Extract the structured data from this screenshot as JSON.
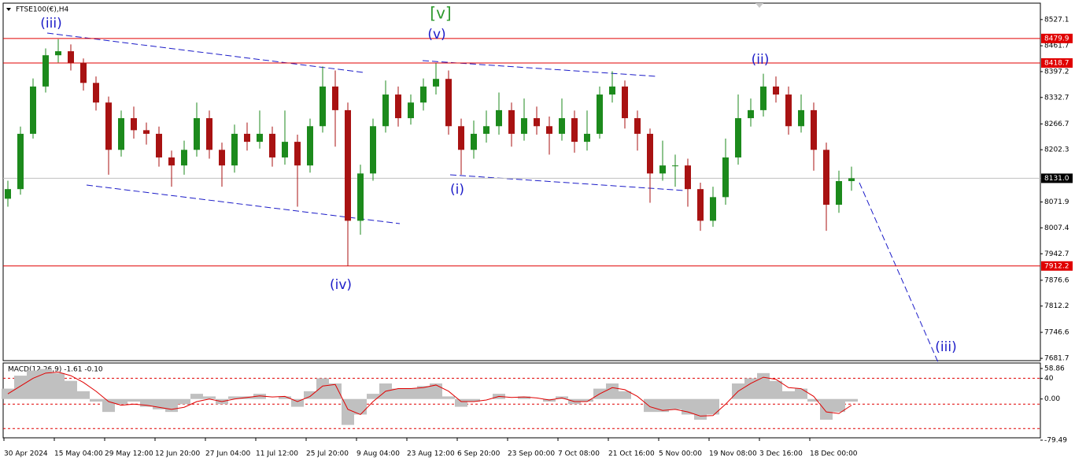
{
  "chart_data": [
    {
      "type": "candlestick",
      "title": "FTSE100(€),H4",
      "categories": [
        "30 Apr 2024",
        null,
        null,
        null,
        "15 May 04:00",
        null,
        null,
        null,
        "29 May 12:00",
        null,
        null,
        null,
        "12 Jun 20:00",
        null,
        null,
        null,
        "27 Jun 04:00",
        null,
        null,
        null,
        "11 Jul 12:00",
        null,
        null,
        null,
        "25 Jul 20:00",
        null,
        null,
        null,
        "9 Aug 04:00",
        null,
        null,
        null,
        "23 Aug 12:00",
        null,
        null,
        null,
        "6 Sep 20:00",
        null,
        null,
        null,
        "23 Sep 00:00",
        null,
        null,
        null,
        "7 Oct 08:00",
        null,
        null,
        null,
        "21 Oct 16:00",
        null,
        null,
        null,
        "5 Nov 00:00",
        null,
        null,
        null,
        "19 Nov 08:00",
        null,
        null,
        null,
        "3 Dec 16:00",
        null,
        null,
        null,
        "18 Dec 00:00",
        null,
        null,
        null
      ],
      "open": [
        8080,
        8104,
        8242,
        8360,
        8438,
        8448,
        8419,
        8369,
        8320,
        8202,
        8281,
        8251,
        8242,
        8183,
        8163,
        8202,
        8281,
        8202,
        8163,
        8242,
        8222,
        8242,
        8183,
        8222,
        8163,
        8261,
        8360,
        8301,
        8025,
        8143,
        8261,
        8340,
        8281,
        8320,
        8360,
        8379,
        8261,
        8202,
        8242,
        8261,
        8301,
        8242,
        8281,
        8261,
        8242,
        8281,
        8222,
        8242,
        8340,
        8360,
        8281,
        8242,
        8143,
        8163,
        8163,
        8104,
        8025,
        8084,
        8183,
        8281,
        8301,
        8360,
        8340,
        8261,
        8301,
        8202,
        8065,
        8124
      ],
      "high": [
        8125,
        8260,
        8380,
        8455,
        8478,
        8465,
        8430,
        8385,
        8335,
        8300,
        8310,
        8270,
        8260,
        8200,
        8225,
        8320,
        8300,
        8220,
        8265,
        8270,
        8300,
        8260,
        8300,
        8240,
        8280,
        8410,
        8400,
        8320,
        8165,
        8280,
        8375,
        8360,
        8340,
        8380,
        8418,
        8400,
        8280,
        8275,
        8300,
        8345,
        8320,
        8330,
        8310,
        8285,
        8330,
        8300,
        8300,
        8360,
        8398,
        8375,
        8300,
        8255,
        8225,
        8190,
        8180,
        8120,
        8110,
        8230,
        8340,
        8330,
        8392,
        8385,
        8360,
        8340,
        8320,
        8220,
        8150,
        8160
      ],
      "low": [
        8060,
        8090,
        8230,
        8345,
        8420,
        8400,
        8350,
        8300,
        8140,
        8185,
        8230,
        8215,
        8160,
        8110,
        8140,
        8185,
        8180,
        8110,
        8145,
        8200,
        8205,
        8160,
        8165,
        8060,
        8145,
        8245,
        8210,
        7912,
        7990,
        8125,
        8245,
        8260,
        8265,
        8300,
        8340,
        8240,
        8140,
        8180,
        8220,
        8240,
        8210,
        8225,
        8240,
        8190,
        8225,
        8195,
        8200,
        8230,
        8320,
        8255,
        8200,
        8070,
        8125,
        8110,
        8060,
        8000,
        8010,
        8065,
        8165,
        8260,
        8285,
        8320,
        8240,
        8245,
        8150,
        8000,
        8045,
        8100
      ],
      "close": [
        8104,
        8242,
        8360,
        8438,
        8448,
        8419,
        8369,
        8320,
        8202,
        8281,
        8251,
        8242,
        8183,
        8163,
        8202,
        8281,
        8202,
        8163,
        8242,
        8222,
        8242,
        8183,
        8222,
        8163,
        8261,
        8360,
        8301,
        8025,
        8143,
        8261,
        8340,
        8281,
        8320,
        8360,
        8379,
        8261,
        8202,
        8242,
        8261,
        8301,
        8242,
        8281,
        8261,
        8242,
        8281,
        8222,
        8242,
        8340,
        8360,
        8281,
        8242,
        8143,
        8163,
        8163,
        8104,
        8025,
        8084,
        8183,
        8281,
        8301,
        8360,
        8340,
        8261,
        8301,
        8202,
        8065,
        8124,
        8131
      ],
      "up_color": "#1c8a1c",
      "down_color": "#a81212",
      "ylim": [
        7676,
        8568
      ],
      "yticks": [
        8527.1,
        8461.7,
        8397.2,
        8332.7,
        8266.7,
        8202.3,
        8071.9,
        8007.4,
        7942.7,
        7876.6,
        7812.2,
        7746.6,
        7681.7
      ],
      "hlines": [
        {
          "value": 8479.9,
          "color": "#e00000"
        },
        {
          "value": 8418.7,
          "color": "#e00000"
        },
        {
          "value": 7912.2,
          "color": "#e00000"
        }
      ],
      "current": {
        "value": 8131.0,
        "label": "8131.0"
      },
      "annotations": [
        {
          "text": "[v]",
          "color": "#2e9a2e"
        },
        {
          "text": "(iii)",
          "color": "#1c1cc8"
        },
        {
          "text": "(v)",
          "color": "#1c1cc8"
        },
        {
          "text": "(ii)",
          "color": "#1c1cc8"
        },
        {
          "text": "(i)",
          "color": "#1c1cc8"
        },
        {
          "text": "(iv)",
          "color": "#1c1cc8"
        },
        {
          "text": "(iii)",
          "color": "#1c1cc8"
        }
      ]
    },
    {
      "type": "macd",
      "title": "MACD(12,26,9) -1.61 -0.10",
      "histogram": [
        20,
        45,
        55,
        58,
        50,
        35,
        15,
        -5,
        -25,
        -10,
        -5,
        -15,
        -20,
        -25,
        -10,
        10,
        5,
        -10,
        5,
        5,
        10,
        0,
        5,
        -15,
        15,
        40,
        30,
        -50,
        -30,
        10,
        30,
        20,
        20,
        25,
        30,
        5,
        -15,
        -5,
        0,
        10,
        0,
        5,
        0,
        -5,
        5,
        -10,
        -5,
        20,
        30,
        15,
        0,
        -25,
        -25,
        -20,
        -30,
        -40,
        -30,
        0,
        30,
        40,
        50,
        35,
        15,
        20,
        -5,
        -40,
        -25,
        -5
      ],
      "signal": [
        10,
        25,
        40,
        50,
        52,
        45,
        32,
        15,
        -5,
        -12,
        -10,
        -12,
        -16,
        -20,
        -16,
        -5,
        0,
        -5,
        0,
        3,
        6,
        4,
        5,
        -5,
        5,
        25,
        28,
        -20,
        -30,
        -5,
        15,
        20,
        20,
        22,
        27,
        15,
        -5,
        -5,
        -2,
        5,
        3,
        4,
        2,
        -2,
        2,
        -5,
        -5,
        10,
        22,
        18,
        5,
        -15,
        -22,
        -20,
        -25,
        -33,
        -32,
        -10,
        15,
        30,
        42,
        38,
        22,
        20,
        5,
        -25,
        -28,
        -12
      ],
      "hist_color": "#c0c0c0",
      "signal_color": "#e00000",
      "ylim": [
        -79.49,
        58.86
      ],
      "yticks": [
        58.86,
        40,
        {
          "value": 0,
          "label": "0.00"
        },
        -79.49
      ],
      "levels": [
        40,
        -10,
        -57
      ],
      "level_color": "#e00000"
    }
  ]
}
